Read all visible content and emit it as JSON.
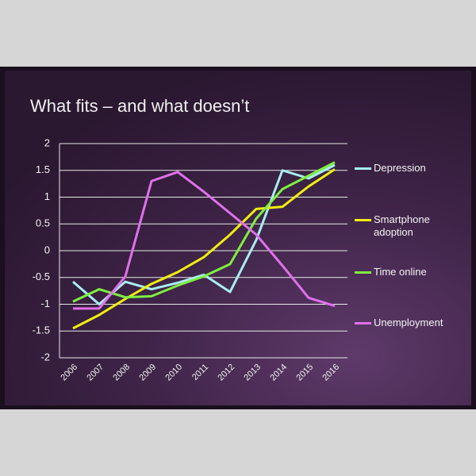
{
  "chart_data": {
    "type": "line",
    "title": "What fits – and what doesn’t",
    "categories": [
      "2006",
      "2007",
      "2008",
      "2009",
      "2010",
      "2011",
      "2012",
      "2013",
      "2014",
      "2015",
      "2016"
    ],
    "series": [
      {
        "name": "Depression",
        "color": "#a8eef2",
        "values": [
          -0.58,
          -1.0,
          -0.58,
          -0.72,
          -0.6,
          -0.45,
          -0.77,
          0.2,
          1.5,
          1.35,
          1.6
        ]
      },
      {
        "name": "Smartphone adoption",
        "color": "#f0ee10",
        "values": [
          -1.45,
          -1.2,
          -0.9,
          -0.62,
          -0.4,
          -0.12,
          0.3,
          0.78,
          0.82,
          1.2,
          1.52
        ]
      },
      {
        "name": "Time online",
        "color": "#80ee40",
        "values": [
          -0.95,
          -0.72,
          -0.87,
          -0.85,
          -0.65,
          -0.48,
          -0.25,
          0.6,
          1.15,
          1.4,
          1.65
        ]
      },
      {
        "name": "Unemployment",
        "color": "#e070ea",
        "values": [
          -1.08,
          -1.08,
          -0.48,
          1.3,
          1.47,
          1.1,
          0.7,
          0.3,
          -0.28,
          -0.88,
          -1.03
        ]
      }
    ],
    "ylim": [
      -2,
      2
    ],
    "yticks": [
      2,
      1.5,
      1,
      0.5,
      0,
      -0.5,
      -1,
      -1.5,
      -2
    ],
    "grid": true,
    "legend": "right"
  }
}
